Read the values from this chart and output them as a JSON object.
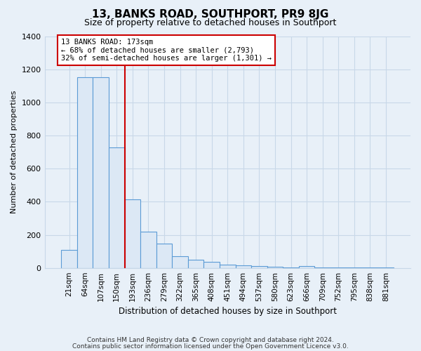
{
  "title": "13, BANKS ROAD, SOUTHPORT, PR9 8JG",
  "subtitle": "Size of property relative to detached houses in Southport",
  "xlabel": "Distribution of detached houses by size in Southport",
  "ylabel": "Number of detached properties",
  "bar_labels": [
    "21sqm",
    "64sqm",
    "107sqm",
    "150sqm",
    "193sqm",
    "236sqm",
    "279sqm",
    "322sqm",
    "365sqm",
    "408sqm",
    "451sqm",
    "494sqm",
    "537sqm",
    "580sqm",
    "623sqm",
    "666sqm",
    "709sqm",
    "752sqm",
    "795sqm",
    "838sqm",
    "881sqm"
  ],
  "bar_values": [
    110,
    1150,
    1150,
    730,
    415,
    220,
    145,
    72,
    50,
    35,
    20,
    15,
    10,
    8,
    5,
    10,
    5,
    3,
    3,
    3,
    3
  ],
  "bar_color": "#dce8f5",
  "bar_edge_color": "#5b9bd5",
  "vline_x": 3.5,
  "vline_color": "#cc0000",
  "annotation_text": "13 BANKS ROAD: 173sqm\n← 68% of detached houses are smaller (2,793)\n32% of semi-detached houses are larger (1,301) →",
  "annotation_bbox_color": "#ffffff",
  "annotation_bbox_edge": "#cc0000",
  "ylim": [
    0,
    1400
  ],
  "yticks": [
    0,
    200,
    400,
    600,
    800,
    1000,
    1200,
    1400
  ],
  "footer_line1": "Contains HM Land Registry data © Crown copyright and database right 2024.",
  "footer_line2": "Contains public sector information licensed under the Open Government Licence v3.0.",
  "background_color": "#e8f0f8",
  "plot_bg_color": "#e8f0f8",
  "grid_color": "#c8d8e8"
}
